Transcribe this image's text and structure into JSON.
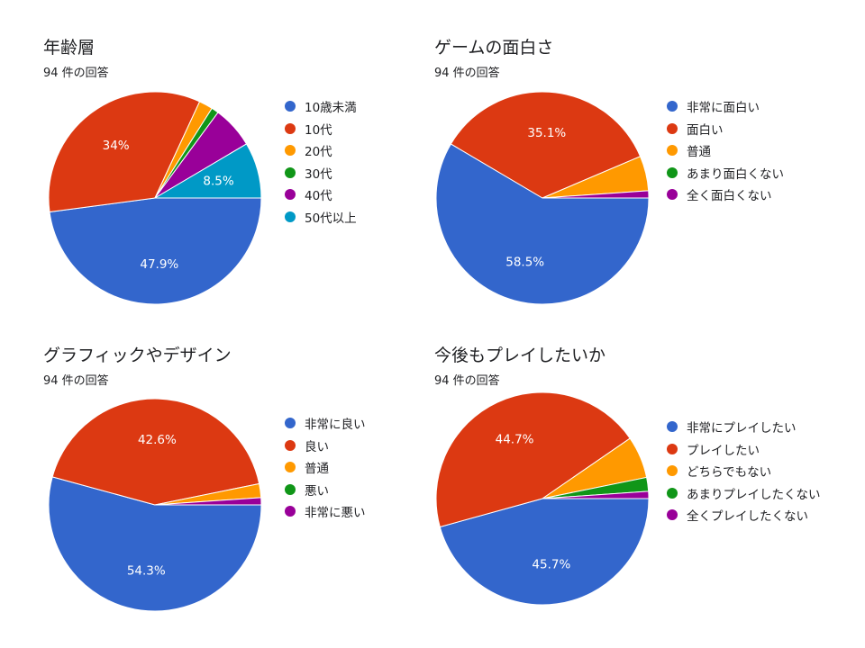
{
  "colors": {
    "blue": "#3366cc",
    "red": "#dc3912",
    "orange": "#ff9900",
    "green": "#109618",
    "purple": "#990099",
    "teal": "#0099c6"
  },
  "chart_data": [
    {
      "type": "pie",
      "title": "年齢層",
      "subtitle": "94 件の回答",
      "labels": [
        "10歳未満",
        "10代",
        "20代",
        "30代",
        "40代",
        "50代以上"
      ],
      "values": [
        47.9,
        34,
        2.1,
        1.1,
        6.4,
        8.5
      ],
      "colors": [
        "#3366cc",
        "#dc3912",
        "#ff9900",
        "#109618",
        "#990099",
        "#0099c6"
      ],
      "data_labels": [
        "47.9%",
        "34%",
        "",
        "",
        "",
        "8.5%"
      ],
      "legend": "right"
    },
    {
      "type": "pie",
      "title": "ゲームの面白さ",
      "subtitle": "94 件の回答",
      "labels": [
        "非常に面白い",
        "面白い",
        "普通",
        "あまり面白くない",
        "全く面白くない"
      ],
      "values": [
        58.5,
        35.1,
        5.3,
        0,
        1.1
      ],
      "colors": [
        "#3366cc",
        "#dc3912",
        "#ff9900",
        "#109618",
        "#990099"
      ],
      "data_labels": [
        "58.5%",
        "35.1%",
        "",
        "",
        ""
      ],
      "legend": "right"
    },
    {
      "type": "pie",
      "title": "グラフィックやデザイン",
      "subtitle": "94 件の回答",
      "labels": [
        "非常に良い",
        "良い",
        "普通",
        "悪い",
        "非常に悪い"
      ],
      "values": [
        54.3,
        42.6,
        2.1,
        0,
        1.1
      ],
      "colors": [
        "#3366cc",
        "#dc3912",
        "#ff9900",
        "#109618",
        "#990099"
      ],
      "data_labels": [
        "54.3%",
        "42.6%",
        "",
        "",
        ""
      ],
      "legend": "right"
    },
    {
      "type": "pie",
      "title": "今後もプレイしたいか",
      "subtitle": "94 件の回答",
      "labels": [
        "非常にプレイしたい",
        "プレイしたい",
        "どちらでもない",
        "あまりプレイしたくない",
        "全くプレイしたくない"
      ],
      "values": [
        45.7,
        44.7,
        6.4,
        2.1,
        1.1
      ],
      "colors": [
        "#3366cc",
        "#dc3912",
        "#ff9900",
        "#109618",
        "#990099"
      ],
      "data_labels": [
        "45.7%",
        "44.7%",
        "",
        "",
        ""
      ],
      "legend": "right"
    }
  ]
}
